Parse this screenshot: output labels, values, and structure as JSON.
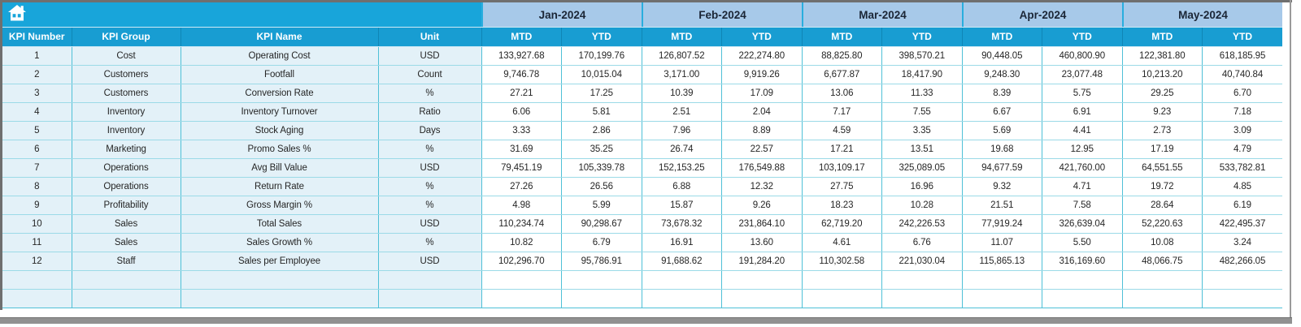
{
  "app": {
    "description": "KPI monthly report spreadsheet"
  },
  "toolbar": {
    "home_icon": "home"
  },
  "colors": {
    "banner_cyan": "#18a5da",
    "header_cyan": "#189dd2",
    "month_header_blue": "#a7c9e9",
    "row_fill_blue": "#e3f1f8",
    "value_cell_white": "#ffffff",
    "border_cyan": "#4fc0d7",
    "border_light_cyan": "#9bdae7",
    "frame_gray": "#6f6f6f",
    "scrollbar_gray": "#919191",
    "month_text": "#1b2636",
    "data_text": "#262626"
  },
  "table": {
    "left_headers": [
      "KPI Number",
      "KPI Group",
      "KPI Name",
      "Unit"
    ],
    "months": [
      "Jan-2024",
      "Feb-2024",
      "Mar-2024",
      "Apr-2024",
      "May-2024"
    ],
    "period_headers": [
      "MTD",
      "YTD"
    ],
    "empty_row_count": 2,
    "rows": [
      {
        "number": "1",
        "group": "Cost",
        "name": "Operating Cost",
        "unit": "USD",
        "values": [
          "133,927.68",
          "170,199.76",
          "126,807.52",
          "222,274.80",
          "88,825.80",
          "398,570.21",
          "90,448.05",
          "460,800.90",
          "122,381.80",
          "618,185.95"
        ]
      },
      {
        "number": "2",
        "group": "Customers",
        "name": "Footfall",
        "unit": "Count",
        "values": [
          "9,746.78",
          "10,015.04",
          "3,171.00",
          "9,919.26",
          "6,677.87",
          "18,417.90",
          "9,248.30",
          "23,077.48",
          "10,213.20",
          "40,740.84"
        ]
      },
      {
        "number": "3",
        "group": "Customers",
        "name": "Conversion Rate",
        "unit": "%",
        "values": [
          "27.21",
          "17.25",
          "10.39",
          "17.09",
          "13.06",
          "11.33",
          "8.39",
          "5.75",
          "29.25",
          "6.70"
        ]
      },
      {
        "number": "4",
        "group": "Inventory",
        "name": "Inventory Turnover",
        "unit": "Ratio",
        "values": [
          "6.06",
          "5.81",
          "2.51",
          "2.04",
          "7.17",
          "7.55",
          "6.67",
          "6.91",
          "9.23",
          "7.18"
        ]
      },
      {
        "number": "5",
        "group": "Inventory",
        "name": "Stock Aging",
        "unit": "Days",
        "values": [
          "3.33",
          "2.86",
          "7.96",
          "8.89",
          "4.59",
          "3.35",
          "5.69",
          "4.41",
          "2.73",
          "3.09"
        ]
      },
      {
        "number": "6",
        "group": "Marketing",
        "name": "Promo Sales %",
        "unit": "%",
        "values": [
          "31.69",
          "35.25",
          "26.74",
          "22.57",
          "17.21",
          "13.51",
          "19.68",
          "12.95",
          "17.19",
          "4.79"
        ]
      },
      {
        "number": "7",
        "group": "Operations",
        "name": "Avg Bill Value",
        "unit": "USD",
        "values": [
          "79,451.19",
          "105,339.78",
          "152,153.25",
          "176,549.88",
          "103,109.17",
          "325,089.05",
          "94,677.59",
          "421,760.00",
          "64,551.55",
          "533,782.81"
        ]
      },
      {
        "number": "8",
        "group": "Operations",
        "name": "Return Rate",
        "unit": "%",
        "values": [
          "27.26",
          "26.56",
          "6.88",
          "12.32",
          "27.75",
          "16.96",
          "9.32",
          "4.71",
          "19.72",
          "4.85"
        ]
      },
      {
        "number": "9",
        "group": "Profitability",
        "name": "Gross Margin %",
        "unit": "%",
        "values": [
          "4.98",
          "5.99",
          "15.87",
          "9.26",
          "18.23",
          "10.28",
          "21.51",
          "7.58",
          "28.64",
          "6.19"
        ]
      },
      {
        "number": "10",
        "group": "Sales",
        "name": "Total Sales",
        "unit": "USD",
        "values": [
          "110,234.74",
          "90,298.67",
          "73,678.32",
          "231,864.10",
          "62,719.20",
          "242,226.53",
          "77,919.24",
          "326,639.04",
          "52,220.63",
          "422,495.37"
        ]
      },
      {
        "number": "11",
        "group": "Sales",
        "name": "Sales Growth %",
        "unit": "%",
        "values": [
          "10.82",
          "6.79",
          "16.91",
          "13.60",
          "4.61",
          "6.76",
          "11.07",
          "5.50",
          "10.08",
          "3.24"
        ]
      },
      {
        "number": "12",
        "group": "Staff",
        "name": "Sales per Employee",
        "unit": "USD",
        "values": [
          "102,296.70",
          "95,786.91",
          "91,688.62",
          "191,284.20",
          "110,302.58",
          "221,030.04",
          "115,865.13",
          "316,169.60",
          "48,066.75",
          "482,266.05"
        ]
      }
    ]
  }
}
